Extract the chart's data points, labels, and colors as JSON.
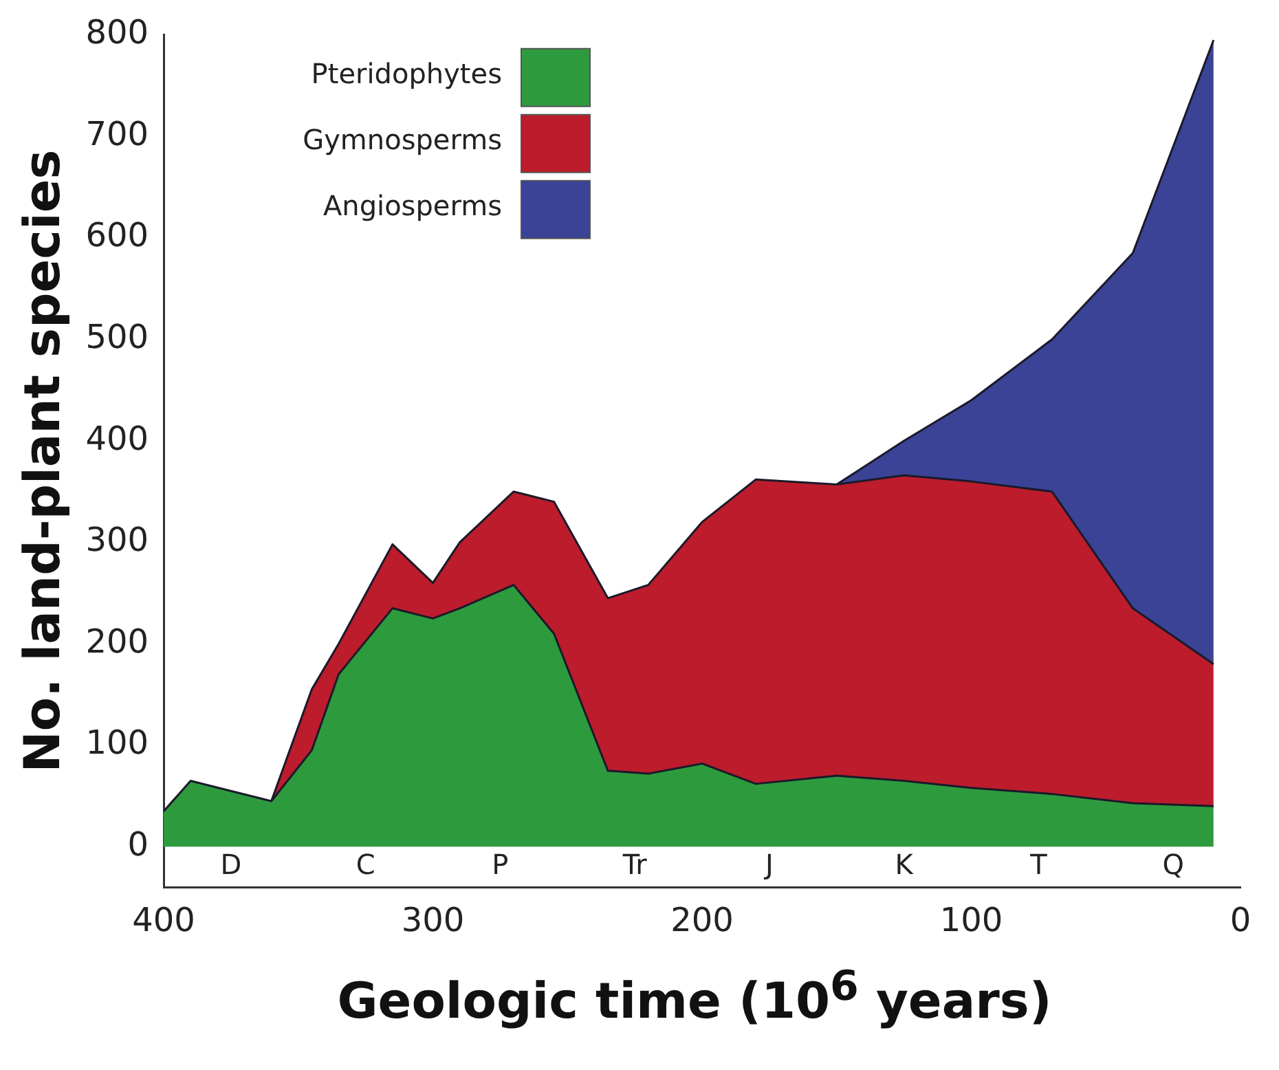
{
  "chart_data": {
    "type": "area",
    "stacked": true,
    "xlabel": "Geologic time (10$^{6}$ years)",
    "ylabel": "No. land-plant species",
    "x": [
      400,
      390,
      375,
      360,
      345,
      335,
      315,
      300,
      290,
      270,
      255,
      235,
      220,
      200,
      180,
      150,
      125,
      100,
      70,
      40,
      10
    ],
    "series": [
      {
        "name": "Pteridophytes",
        "color": "#2e9a3e",
        "values": [
          35,
          65,
          55,
          45,
          95,
          170,
          235,
          225,
          235,
          258,
          210,
          75,
          72,
          82,
          62,
          70,
          65,
          58,
          52,
          43,
          40
        ]
      },
      {
        "name": "Gymnosperms",
        "color": "#bc1c2c",
        "values": [
          null,
          null,
          null,
          0,
          60,
          30,
          63,
          35,
          65,
          92,
          130,
          170,
          186,
          238,
          300,
          287,
          301,
          302,
          298,
          192,
          140
        ]
      },
      {
        "name": "Angiosperms",
        "color": "#3a4396",
        "values": [
          null,
          null,
          null,
          null,
          null,
          null,
          null,
          null,
          null,
          null,
          null,
          null,
          null,
          null,
          null,
          0,
          34,
          80,
          150,
          350,
          615
        ]
      }
    ],
    "xlim": [
      400,
      0
    ],
    "xticks": [
      400,
      300,
      200,
      100,
      0
    ],
    "ylim": [
      -40,
      800
    ],
    "yticks": [
      0,
      100,
      200,
      300,
      400,
      500,
      600,
      700,
      800
    ],
    "grid": false,
    "legend": "top left",
    "annotations": [
      "D",
      "C",
      "P",
      "Tr",
      "J",
      "K",
      "T",
      "Q"
    ]
  }
}
